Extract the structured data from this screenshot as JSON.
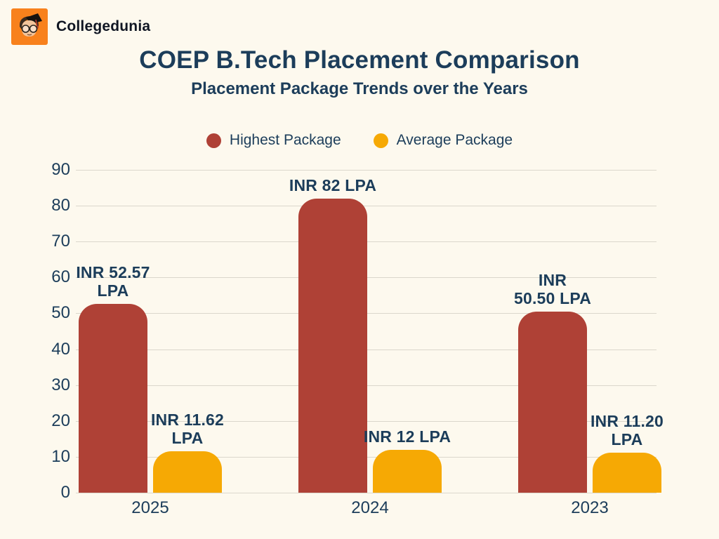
{
  "colors": {
    "background": "#FDF9EE",
    "navy": "#1C3D5A",
    "red": "#AF4136",
    "orange": "#F6A904",
    "grid": "#DBD7CC",
    "logo": "#F8811C",
    "brand_text": "#101623"
  },
  "header": {
    "brand_name": "Collegedunia",
    "title": "COEP B.Tech Placement Comparison",
    "subtitle": "Placement Package Trends over the Years"
  },
  "chart_data": {
    "type": "bar",
    "title": "COEP B.Tech Placement Comparison",
    "subtitle": "Placement Package Trends over the Years",
    "categories": [
      "2025",
      "2024",
      "2023"
    ],
    "series": [
      {
        "name": "Highest Package",
        "color": "#AF4136",
        "values": [
          52.57,
          82,
          50.5
        ],
        "value_labels": [
          [
            "INR 52.57",
            "LPA"
          ],
          [
            "INR 82 LPA"
          ],
          [
            "INR",
            "50.50 LPA"
          ]
        ]
      },
      {
        "name": "Average Package",
        "color": "#F6A904",
        "values": [
          11.62,
          12,
          11.2
        ],
        "value_labels": [
          [
            "INR 11.62",
            "LPA"
          ],
          [
            "INR 12 LPA"
          ],
          [
            "INR 11.20",
            "LPA"
          ]
        ]
      }
    ],
    "unit": "INR LPA",
    "ylim": [
      0,
      90
    ],
    "yticks": [
      0,
      10,
      20,
      30,
      40,
      50,
      60,
      70,
      80,
      90
    ],
    "grid": true,
    "legend_position": "top",
    "xlabel": "",
    "ylabel": ""
  }
}
